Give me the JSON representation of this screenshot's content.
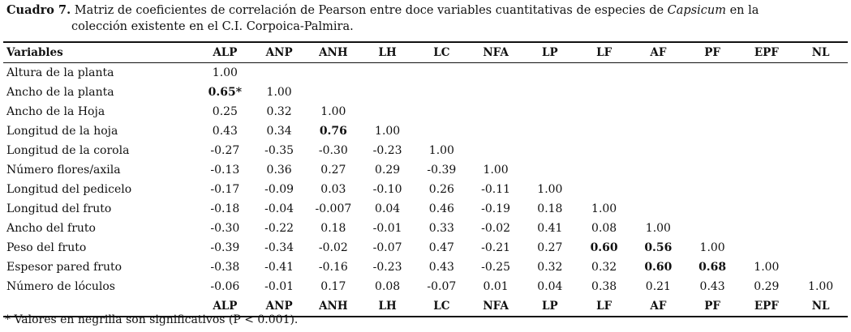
{
  "caption": {
    "label": "Cuadro 7.",
    "text_before": " Matriz de coeficientes de correlación de Pearson entre doce variables cuantitativas de especies de ",
    "italic": "Capsicum",
    "text_after": " en la",
    "line2": "colección existente en el C.I. Corpoica-Palmira."
  },
  "table": {
    "header_label": "Variables",
    "columns": [
      "ALP",
      "ANP",
      "ANH",
      "LH",
      "LC",
      "NFA",
      "LP",
      "LF",
      "AF",
      "PF",
      "EPF",
      "NL"
    ],
    "rows": [
      {
        "label": "Altura de la planta",
        "cells": [
          {
            "v": "1.00"
          }
        ]
      },
      {
        "label": "Ancho de la planta",
        "cells": [
          {
            "v": "0.65*",
            "b": true
          },
          {
            "v": "1.00"
          }
        ]
      },
      {
        "label": "Ancho de la Hoja",
        "cells": [
          {
            "v": "0.25"
          },
          {
            "v": "0.32"
          },
          {
            "v": "1.00"
          }
        ]
      },
      {
        "label": "Longitud de la hoja",
        "cells": [
          {
            "v": "0.43"
          },
          {
            "v": "0.34"
          },
          {
            "v": "0.76",
            "b": true
          },
          {
            "v": "1.00"
          }
        ]
      },
      {
        "label": "Longitud de la corola",
        "cells": [
          {
            "v": "-0.27"
          },
          {
            "v": "-0.35"
          },
          {
            "v": "-0.30"
          },
          {
            "v": "-0.23"
          },
          {
            "v": "1.00"
          }
        ]
      },
      {
        "label": "Número flores/axila",
        "cells": [
          {
            "v": "-0.13"
          },
          {
            "v": "0.36"
          },
          {
            "v": "0.27"
          },
          {
            "v": "0.29"
          },
          {
            "v": "-0.39"
          },
          {
            "v": "1.00"
          }
        ]
      },
      {
        "label": "Longitud del pedicelo",
        "cells": [
          {
            "v": "-0.17"
          },
          {
            "v": "-0.09"
          },
          {
            "v": "0.03"
          },
          {
            "v": "-0.10"
          },
          {
            "v": "0.26"
          },
          {
            "v": "-0.11"
          },
          {
            "v": "1.00"
          }
        ]
      },
      {
        "label": "Longitud del fruto",
        "cells": [
          {
            "v": "-0.18"
          },
          {
            "v": "-0.04"
          },
          {
            "v": "-0.007"
          },
          {
            "v": "0.04"
          },
          {
            "v": "0.46"
          },
          {
            "v": "-0.19"
          },
          {
            "v": "0.18"
          },
          {
            "v": "1.00"
          }
        ]
      },
      {
        "label": "Ancho del fruto",
        "cells": [
          {
            "v": "-0.30"
          },
          {
            "v": "-0.22"
          },
          {
            "v": "0.18"
          },
          {
            "v": "-0.01"
          },
          {
            "v": "0.33"
          },
          {
            "v": "-0.02"
          },
          {
            "v": "0.41"
          },
          {
            "v": "0.08"
          },
          {
            "v": "1.00"
          }
        ]
      },
      {
        "label": "Peso del fruto",
        "cells": [
          {
            "v": "-0.39"
          },
          {
            "v": "-0.34"
          },
          {
            "v": "-0.02"
          },
          {
            "v": "-0.07"
          },
          {
            "v": "0.47"
          },
          {
            "v": "-0.21"
          },
          {
            "v": "0.27"
          },
          {
            "v": "0.60",
            "b": true
          },
          {
            "v": "0.56",
            "b": true
          },
          {
            "v": "1.00"
          }
        ]
      },
      {
        "label": "Espesor pared fruto",
        "cells": [
          {
            "v": "-0.38"
          },
          {
            "v": "-0.41"
          },
          {
            "v": "-0.16"
          },
          {
            "v": "-0.23"
          },
          {
            "v": "0.43"
          },
          {
            "v": "-0.25"
          },
          {
            "v": "0.32"
          },
          {
            "v": "0.32"
          },
          {
            "v": "0.60",
            "b": true
          },
          {
            "v": "0.68",
            "b": true
          },
          {
            "v": "1.00"
          }
        ]
      },
      {
        "label": "Número de lóculos",
        "cells": [
          {
            "v": "-0.06"
          },
          {
            "v": "-0.01"
          },
          {
            "v": "0.17"
          },
          {
            "v": "0.08"
          },
          {
            "v": "-0.07"
          },
          {
            "v": "0.01"
          },
          {
            "v": "0.04"
          },
          {
            "v": "0.38"
          },
          {
            "v": "0.21"
          },
          {
            "v": "0.43"
          },
          {
            "v": "0.29"
          },
          {
            "v": "1.00"
          }
        ]
      }
    ]
  },
  "footnote": "* Valores en negrilla son significativos (P < 0.001)."
}
